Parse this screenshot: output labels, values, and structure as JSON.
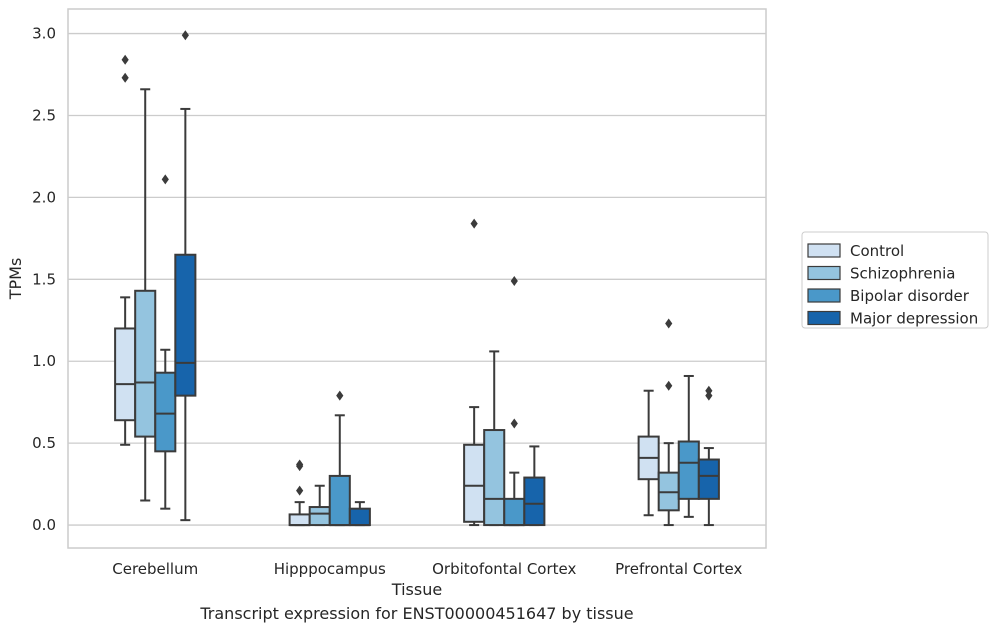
{
  "caption": "Transcript expression for ENST00000451647 by tissue",
  "chart_data": {
    "type": "boxplot",
    "xlabel": "Tissue",
    "ylabel": "TPMs",
    "ylim": [
      -0.14,
      3.15
    ],
    "yticks": [
      0.0,
      0.5,
      1.0,
      1.5,
      2.0,
      2.5,
      3.0
    ],
    "ytick_labels": [
      "0.0",
      "0.5",
      "1.0",
      "1.5",
      "2.0",
      "2.5",
      "3.0"
    ],
    "grid": "horizontal",
    "legend_position": "right",
    "categories": [
      "Cerebellum",
      "Hipppocampus",
      "Orbitofontal Cortex",
      "Prefrontal Cortex"
    ],
    "series": [
      {
        "name": "Control",
        "color": "#d0e1f2",
        "boxes": [
          {
            "whisker_low": 0.49,
            "q1": 0.64,
            "median": 0.86,
            "q3": 1.2,
            "whisker_high": 1.39,
            "outliers": [
              2.73,
              2.84
            ]
          },
          {
            "whisker_low": 0.0,
            "q1": 0.0,
            "median": 0.0,
            "q3": 0.065,
            "whisker_high": 0.14,
            "outliers": [
              0.21,
              0.36,
              0.37
            ]
          },
          {
            "whisker_low": 0.0,
            "q1": 0.02,
            "median": 0.24,
            "q3": 0.49,
            "whisker_high": 0.72,
            "outliers": [
              1.84
            ]
          },
          {
            "whisker_low": 0.06,
            "q1": 0.28,
            "median": 0.41,
            "q3": 0.54,
            "whisker_high": 0.82,
            "outliers": []
          }
        ]
      },
      {
        "name": "Schizophrenia",
        "color": "#94c4df",
        "boxes": [
          {
            "whisker_low": 0.15,
            "q1": 0.54,
            "median": 0.87,
            "q3": 1.43,
            "whisker_high": 2.66,
            "outliers": []
          },
          {
            "whisker_low": 0.0,
            "q1": 0.0,
            "median": 0.07,
            "q3": 0.11,
            "whisker_high": 0.24,
            "outliers": []
          },
          {
            "whisker_low": 0.0,
            "q1": 0.0,
            "median": 0.16,
            "q3": 0.58,
            "whisker_high": 1.06,
            "outliers": []
          },
          {
            "whisker_low": 0.0,
            "q1": 0.09,
            "median": 0.2,
            "q3": 0.32,
            "whisker_high": 0.5,
            "outliers": [
              0.85,
              1.23
            ]
          }
        ]
      },
      {
        "name": "Bipolar disorder",
        "color": "#4a98c9",
        "boxes": [
          {
            "whisker_low": 0.1,
            "q1": 0.45,
            "median": 0.68,
            "q3": 0.93,
            "whisker_high": 1.07,
            "outliers": [
              2.11
            ]
          },
          {
            "whisker_low": 0.0,
            "q1": 0.0,
            "median": 0.0,
            "q3": 0.3,
            "whisker_high": 0.67,
            "outliers": [
              0.79
            ]
          },
          {
            "whisker_low": 0.0,
            "q1": 0.0,
            "median": 0.0,
            "q3": 0.16,
            "whisker_high": 0.32,
            "outliers": [
              0.62,
              1.49
            ]
          },
          {
            "whisker_low": 0.05,
            "q1": 0.16,
            "median": 0.38,
            "q3": 0.51,
            "whisker_high": 0.91,
            "outliers": []
          }
        ]
      },
      {
        "name": "Major depression",
        "color": "#1764ab",
        "boxes": [
          {
            "whisker_low": 0.03,
            "q1": 0.79,
            "median": 0.99,
            "q3": 1.65,
            "whisker_high": 2.54,
            "outliers": [
              2.99
            ]
          },
          {
            "whisker_low": 0.0,
            "q1": 0.0,
            "median": 0.0,
            "q3": 0.1,
            "whisker_high": 0.14,
            "outliers": []
          },
          {
            "whisker_low": 0.0,
            "q1": 0.0,
            "median": 0.13,
            "q3": 0.29,
            "whisker_high": 0.48,
            "outliers": []
          },
          {
            "whisker_low": 0.0,
            "q1": 0.16,
            "median": 0.3,
            "q3": 0.4,
            "whisker_high": 0.47,
            "outliers": [
              0.79,
              0.82
            ]
          }
        ]
      }
    ]
  }
}
